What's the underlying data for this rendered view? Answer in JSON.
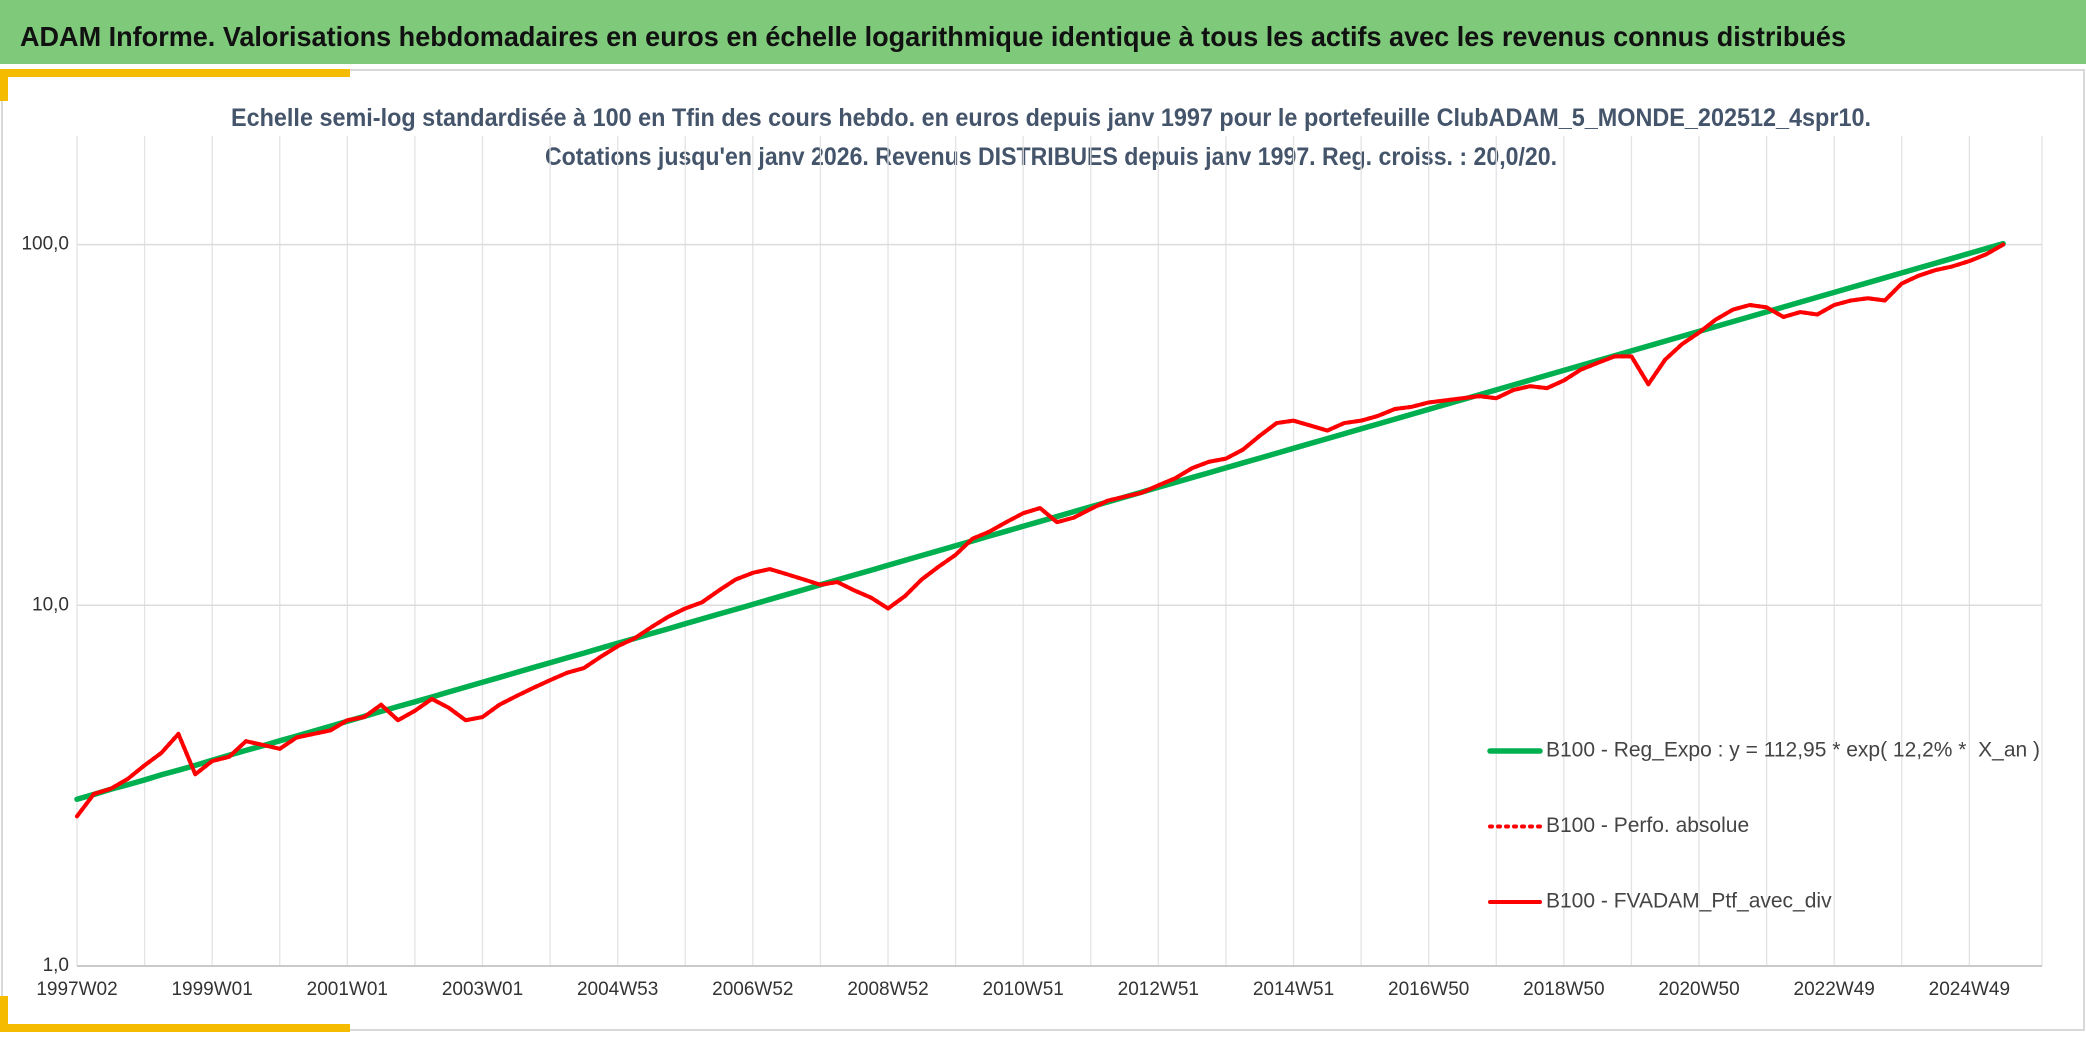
{
  "chart_data": {
    "type": "line",
    "title": "ADAM Informe. Valorisations hebdomadaires en euros en échelle logarithmique identique à tous les actifs avec les revenus connus distribués",
    "subtitle": [
      "Echelle semi-log standardisée à 100 en Tfin des cours hebdo. en euros depuis janv 1997 pour le portefeuille ClubADAM_5_MONDE_202512_4spr10.",
      "Cotations jusqu'en janv 2026. Revenus DISTRIBUES depuis janv 1997. Reg. croiss. : 20,0/20."
    ],
    "log_scale": true,
    "grid": true,
    "legend": "right",
    "ylim": [
      1,
      200
    ],
    "yticks": [
      {
        "value": 1,
        "label": "1,0"
      },
      {
        "value": 10,
        "label": "10,0"
      },
      {
        "value": 100,
        "label": "100,0"
      }
    ],
    "categories": [
      "1997W02",
      null,
      null,
      null,
      null,
      null,
      null,
      null,
      "1999W01",
      null,
      null,
      null,
      null,
      null,
      null,
      null,
      "2001W01",
      null,
      null,
      null,
      null,
      null,
      null,
      null,
      "2003W01",
      null,
      null,
      null,
      null,
      null,
      null,
      null,
      "2004W53",
      null,
      null,
      null,
      null,
      null,
      null,
      null,
      "2006W52",
      null,
      null,
      null,
      null,
      null,
      null,
      null,
      "2008W52",
      null,
      null,
      null,
      null,
      null,
      null,
      null,
      "2010W51",
      null,
      null,
      null,
      null,
      null,
      null,
      null,
      "2012W51",
      null,
      null,
      null,
      null,
      null,
      null,
      null,
      "2014W51",
      null,
      null,
      null,
      null,
      null,
      null,
      null,
      "2016W50",
      null,
      null,
      null,
      null,
      null,
      null,
      null,
      "2018W50",
      null,
      null,
      null,
      null,
      null,
      null,
      null,
      "2020W50",
      null,
      null,
      null,
      null,
      null,
      null,
      null,
      "2022W49",
      null,
      null,
      null,
      null,
      null,
      null,
      null,
      "2024W49",
      null,
      null
    ],
    "series": [
      {
        "name": "B100 - Reg_Expo : y = 112,95 * exp( 12,2% *  X_an )",
        "color": "#00b050",
        "dash": false,
        "values": [
          2.9,
          2.99,
          3.09,
          3.18,
          3.28,
          3.39,
          3.49,
          3.6,
          3.72,
          3.84,
          3.96,
          4.08,
          4.21,
          4.34,
          4.48,
          4.62,
          4.77,
          4.92,
          5.08,
          5.24,
          5.4,
          5.57,
          5.75,
          5.93,
          6.12,
          6.31,
          6.51,
          6.72,
          6.93,
          7.15,
          7.37,
          7.61,
          7.85,
          8.09,
          8.35,
          8.61,
          8.89,
          9.17,
          9.46,
          9.75,
          10.06,
          10.38,
          10.71,
          11.04,
          11.4,
          11.76,
          12.13,
          12.51,
          12.91,
          13.32,
          13.74,
          14.17,
          14.62,
          15.08,
          15.56,
          16.05,
          16.56,
          17.08,
          17.62,
          18.18,
          18.75,
          19.34,
          19.95,
          20.58,
          21.24,
          21.91,
          22.6,
          23.31,
          24.05,
          24.81,
          25.59,
          26.4,
          27.24,
          28.1,
          28.98,
          29.9,
          30.85,
          31.82,
          32.82,
          33.86,
          34.93,
          36.03,
          37.17,
          38.34,
          39.56,
          40.81,
          42.09,
          43.42,
          44.8,
          46.21,
          47.67,
          49.17,
          50.74,
          52.34,
          53.99,
          55.69,
          57.46,
          59.27,
          61.14,
          63.07,
          65.08,
          67.13,
          69.25,
          71.43,
          73.7,
          76.02,
          78.42,
          80.89,
          83.47,
          86.1,
          88.81,
          91.61,
          94.53,
          97.51,
          100.6
        ]
      },
      {
        "name": "B100 - Perfo. absolue",
        "color": "#ff0000",
        "dash": true,
        "values": [
          2.6,
          3.0,
          3.1,
          3.3,
          3.6,
          3.9,
          4.4,
          3.4,
          3.7,
          3.8,
          4.2,
          4.1,
          4.0,
          4.3,
          4.4,
          4.5,
          4.8,
          4.9,
          5.3,
          4.8,
          5.1,
          5.5,
          5.2,
          4.8,
          4.9,
          5.3,
          5.6,
          5.9,
          6.2,
          6.5,
          6.7,
          7.2,
          7.7,
          8.1,
          8.7,
          9.3,
          9.8,
          10.2,
          11.0,
          11.8,
          12.3,
          12.6,
          12.2,
          11.8,
          11.4,
          11.6,
          11.0,
          10.5,
          9.8,
          10.6,
          11.8,
          12.8,
          13.8,
          15.3,
          16.0,
          17.0,
          18.0,
          18.6,
          17.0,
          17.5,
          18.5,
          19.5,
          20.0,
          20.5,
          21.5,
          22.5,
          24.0,
          25.0,
          25.5,
          27.0,
          29.5,
          32.0,
          32.5,
          31.5,
          30.5,
          32.0,
          32.5,
          33.5,
          35.0,
          35.5,
          36.5,
          37.0,
          37.5,
          38.0,
          37.5,
          39.5,
          40.5,
          40.0,
          42.0,
          45.0,
          47.0,
          49.0,
          49,
          41,
          48,
          53,
          57,
          62,
          66,
          68,
          67,
          63,
          65,
          64,
          68,
          70,
          71,
          70,
          78,
          82,
          85,
          87,
          90,
          94,
          100
        ]
      },
      {
        "name": "B100 - FVADAM_Ptf_avec_div",
        "color": "#ff0000",
        "dash": false,
        "values": [
          2.6,
          3.0,
          3.1,
          3.3,
          3.6,
          3.9,
          4.4,
          3.4,
          3.7,
          3.8,
          4.2,
          4.1,
          4.0,
          4.3,
          4.4,
          4.5,
          4.8,
          4.9,
          5.3,
          4.8,
          5.1,
          5.5,
          5.2,
          4.8,
          4.9,
          5.3,
          5.6,
          5.9,
          6.2,
          6.5,
          6.7,
          7.2,
          7.7,
          8.1,
          8.7,
          9.3,
          9.8,
          10.2,
          11.0,
          11.8,
          12.3,
          12.6,
          12.2,
          11.8,
          11.4,
          11.6,
          11.0,
          10.5,
          9.8,
          10.6,
          11.8,
          12.8,
          13.8,
          15.3,
          16.0,
          17.0,
          18.0,
          18.6,
          17.0,
          17.5,
          18.5,
          19.5,
          20.0,
          20.5,
          21.5,
          22.5,
          24.0,
          25.0,
          25.5,
          27.0,
          29.5,
          32.0,
          32.5,
          31.5,
          30.5,
          32.0,
          32.5,
          33.5,
          35.0,
          35.5,
          36.5,
          37.0,
          37.5,
          38.0,
          37.5,
          39.5,
          40.5,
          40.0,
          42.0,
          45.0,
          47.0,
          49.0,
          49,
          41,
          48,
          53,
          57,
          62,
          66,
          68,
          67,
          63,
          65,
          64,
          68,
          70,
          71,
          70,
          78,
          82,
          85,
          87,
          90,
          94,
          100
        ]
      }
    ]
  }
}
